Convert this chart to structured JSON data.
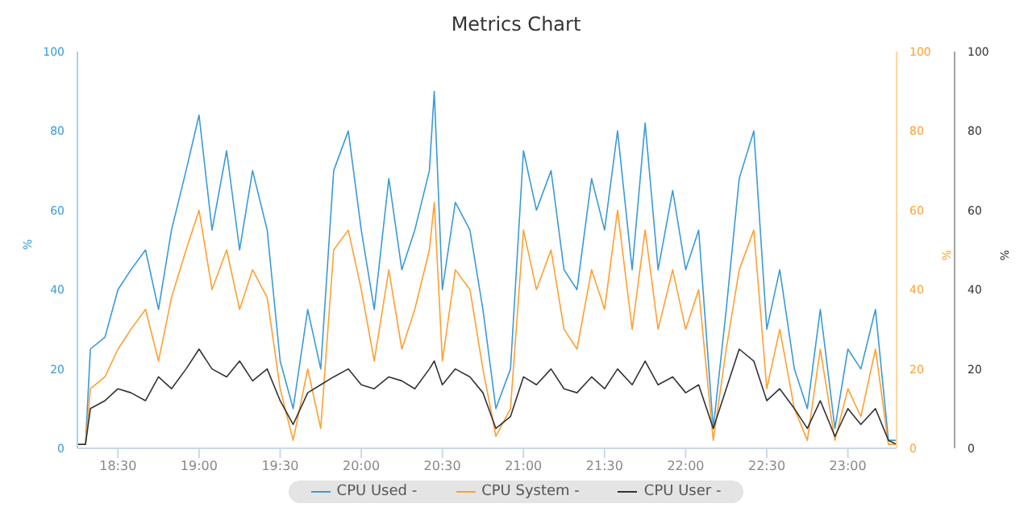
{
  "chart_data": {
    "type": "line",
    "title": "Metrics Chart",
    "ylabel": "%",
    "y2label": "%",
    "y3label": "%",
    "x": [
      18.25,
      18.3,
      18.33,
      18.42,
      18.5,
      18.58,
      18.67,
      18.75,
      18.83,
      18.92,
      19,
      19.08,
      19.17,
      19.25,
      19.33,
      19.42,
      19.5,
      19.58,
      19.67,
      19.75,
      19.83,
      19.92,
      20,
      20.08,
      20.17,
      20.25,
      20.33,
      20.42,
      20.45,
      20.5,
      20.58,
      20.67,
      20.75,
      20.83,
      20.92,
      21,
      21.08,
      21.17,
      21.25,
      21.33,
      21.42,
      21.5,
      21.58,
      21.67,
      21.75,
      21.83,
      21.92,
      22,
      22.08,
      22.17,
      22.25,
      22.33,
      22.42,
      22.5,
      22.58,
      22.67,
      22.75,
      22.83,
      22.92,
      23,
      23.08,
      23.17,
      23.25,
      23.3
    ],
    "series": [
      {
        "name": "CPU Used -",
        "color": "#3a9ad9",
        "values": [
          null,
          1,
          25,
          28,
          40,
          45,
          50,
          35,
          55,
          70,
          84,
          55,
          75,
          50,
          70,
          55,
          22,
          10,
          35,
          20,
          70,
          80,
          55,
          35,
          68,
          45,
          55,
          70,
          90,
          40,
          62,
          55,
          35,
          10,
          20,
          75,
          60,
          70,
          45,
          40,
          68,
          55,
          80,
          45,
          82,
          45,
          65,
          45,
          55,
          5,
          35,
          68,
          80,
          30,
          45,
          20,
          10,
          35,
          5,
          25,
          20,
          35,
          2,
          2
        ]
      },
      {
        "name": "CPU System -",
        "color": "#ff9f30",
        "axis": "y2",
        "values": [
          null,
          1,
          15,
          18,
          25,
          30,
          35,
          22,
          38,
          50,
          60,
          40,
          50,
          35,
          45,
          38,
          15,
          2,
          20,
          5,
          50,
          55,
          40,
          22,
          45,
          25,
          35,
          50,
          62,
          22,
          45,
          40,
          20,
          3,
          10,
          55,
          40,
          50,
          30,
          25,
          45,
          35,
          60,
          30,
          55,
          30,
          45,
          30,
          40,
          2,
          25,
          45,
          55,
          15,
          30,
          10,
          2,
          25,
          2,
          15,
          8,
          25,
          1,
          1
        ]
      },
      {
        "name": "CPU User -",
        "color": "#333333",
        "axis": "y3",
        "values": [
          1,
          1,
          10,
          12,
          15,
          14,
          12,
          18,
          15,
          20,
          25,
          20,
          18,
          22,
          17,
          20,
          12,
          6,
          14,
          16,
          18,
          20,
          16,
          15,
          18,
          17,
          15,
          20,
          22,
          16,
          20,
          18,
          14,
          5,
          8,
          18,
          16,
          20,
          15,
          14,
          18,
          15,
          20,
          16,
          22,
          16,
          18,
          14,
          16,
          5,
          15,
          25,
          22,
          12,
          15,
          10,
          5,
          12,
          3,
          10,
          6,
          10,
          2,
          1
        ]
      }
    ],
    "xlim": [
      18.25,
      23.3
    ],
    "xticks": [
      {
        "value": 18.5,
        "label": "18:30"
      },
      {
        "value": 19,
        "label": "19:00"
      },
      {
        "value": 19.5,
        "label": "19:30"
      },
      {
        "value": 20,
        "label": "20:00"
      },
      {
        "value": 20.5,
        "label": "20:30"
      },
      {
        "value": 21,
        "label": "21:00"
      },
      {
        "value": 21.5,
        "label": "21:30"
      },
      {
        "value": 22,
        "label": "22:00"
      },
      {
        "value": 22.5,
        "label": "22:30"
      },
      {
        "value": 23,
        "label": "23:00"
      }
    ],
    "ylim": [
      0,
      100
    ],
    "yticks": [
      0,
      20,
      40,
      60,
      80,
      100
    ],
    "y2lim": [
      0,
      100
    ],
    "y2ticks": [
      0,
      20,
      40,
      60,
      80,
      100
    ],
    "y3lim": [
      0,
      100
    ],
    "y3ticks": [
      0,
      20,
      40,
      60,
      80,
      100
    ],
    "grid": false,
    "legend": "bottom",
    "marker": "none",
    "line_style": "solid"
  }
}
